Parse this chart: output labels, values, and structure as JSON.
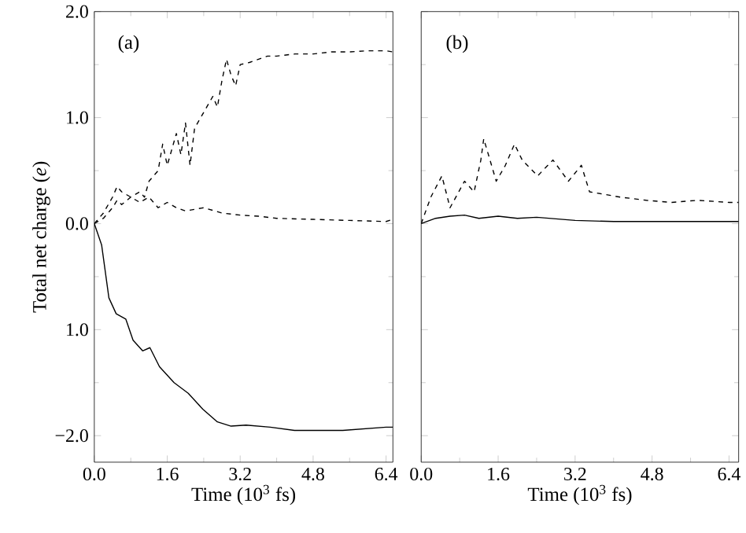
{
  "chart_data": [
    {
      "type": "line",
      "title": "(a)",
      "xlabel": "Time (10$^{3}$ fs)",
      "ylabel": "Total net charge (*e*)",
      "xlim": [
        0,
        6.55
      ],
      "ylim": [
        -2.25,
        2.0
      ],
      "xticks": [
        {
          "value": 0,
          "label": "0.0"
        },
        1.6,
        3.2,
        4.8,
        6.4
      ],
      "yticks": [
        {
          "value": 2.0,
          "label": "2.0"
        },
        {
          "value": 1.0,
          "label": "1.0"
        },
        {
          "value": 0.0,
          "label": "0.0"
        },
        {
          "value": -1.0,
          "label": "1.0"
        },
        {
          "value": -2.0,
          "label": "−2.0"
        }
      ],
      "series": [
        {
          "color": "#000000",
          "line_style": "dashed",
          "x": [
            0,
            0.2,
            0.4,
            0.5,
            0.6,
            0.8,
            1.0,
            1.1,
            1.2,
            1.4,
            1.5,
            1.6,
            1.7,
            1.8,
            1.9,
            2.0,
            2.1,
            2.2,
            2.4,
            2.6,
            2.7,
            2.8,
            2.9,
            3.0,
            3.1,
            3.2,
            3.4,
            3.6,
            3.8,
            4.0,
            4.4,
            4.8,
            5.2,
            5.6,
            6.0,
            6.4,
            6.55
          ],
          "values": [
            0,
            0.05,
            0.15,
            0.22,
            0.18,
            0.25,
            0.3,
            0.25,
            0.4,
            0.5,
            0.75,
            0.55,
            0.7,
            0.85,
            0.65,
            0.95,
            0.55,
            0.9,
            1.05,
            1.2,
            1.1,
            1.35,
            1.55,
            1.4,
            1.3,
            1.5,
            1.52,
            1.55,
            1.58,
            1.58,
            1.6,
            1.6,
            1.62,
            1.62,
            1.63,
            1.63,
            1.62
          ]
        },
        {
          "color": "#000000",
          "line_style": "dashed",
          "x": [
            0,
            0.2,
            0.4,
            0.5,
            0.6,
            0.8,
            1.0,
            1.2,
            1.4,
            1.6,
            1.8,
            2.0,
            2.4,
            2.8,
            3.2,
            3.6,
            4.0,
            4.8,
            5.6,
            6.4,
            6.55
          ],
          "values": [
            0,
            0.1,
            0.25,
            0.35,
            0.3,
            0.25,
            0.2,
            0.25,
            0.15,
            0.2,
            0.15,
            0.12,
            0.15,
            0.1,
            0.08,
            0.07,
            0.05,
            0.04,
            0.03,
            0.02,
            0.04
          ]
        },
        {
          "color": "#000000",
          "line_style": "solid",
          "x": [
            0,
            0.16,
            0.32,
            0.48,
            0.69,
            0.85,
            1.06,
            1.22,
            1.43,
            1.75,
            2.06,
            2.38,
            2.7,
            3.0,
            3.33,
            3.86,
            4.39,
            5.45,
            6.4,
            6.55
          ],
          "values": [
            0,
            -0.2,
            -0.7,
            -0.85,
            -0.9,
            -1.1,
            -1.2,
            -1.17,
            -1.35,
            -1.5,
            -1.6,
            -1.75,
            -1.87,
            -1.91,
            -1.9,
            -1.92,
            -1.95,
            -1.95,
            -1.92,
            -1.92
          ]
        }
      ]
    },
    {
      "type": "line",
      "title": "(b)",
      "xlabel": "Time (10$^{3}$ fs)",
      "tick_labels": "x",
      "xlim": [
        0,
        6.6
      ],
      "ylim": [
        -2.25,
        2.0
      ],
      "xticks": [
        {
          "value": 0,
          "label": "0.0"
        },
        1.6,
        3.2,
        4.8,
        6.4
      ],
      "yticks": [
        {
          "value": 2.0,
          "label": null
        },
        {
          "value": 1.0,
          "label": null
        },
        {
          "value": 0.0,
          "label": null
        },
        {
          "value": -1.0,
          "label": null
        },
        {
          "value": -2.0,
          "label": null
        }
      ],
      "series": [
        {
          "color": "#000000",
          "line_style": "dashed",
          "x": [
            0,
            0.2,
            0.43,
            0.6,
            0.9,
            1.1,
            1.24,
            1.3,
            1.56,
            1.75,
            1.94,
            2.1,
            2.42,
            2.74,
            3.06,
            3.33,
            3.5,
            4.14,
            4.68,
            5.2,
            5.75,
            6.4,
            6.6
          ],
          "values": [
            0,
            0.25,
            0.45,
            0.15,
            0.4,
            0.3,
            0.6,
            0.8,
            0.4,
            0.55,
            0.75,
            0.6,
            0.45,
            0.6,
            0.4,
            0.55,
            0.3,
            0.25,
            0.22,
            0.2,
            0.22,
            0.2,
            0.2
          ]
        },
        {
          "color": "#000000",
          "line_style": "solid",
          "x": [
            0,
            0.3,
            0.6,
            0.9,
            1.2,
            1.6,
            2.0,
            2.4,
            3.2,
            4.0,
            4.8,
            6.4,
            6.6
          ],
          "values": [
            0,
            0.05,
            0.07,
            0.08,
            0.05,
            0.07,
            0.05,
            0.06,
            0.03,
            0.02,
            0.02,
            0.02,
            0.02
          ]
        }
      ]
    }
  ]
}
